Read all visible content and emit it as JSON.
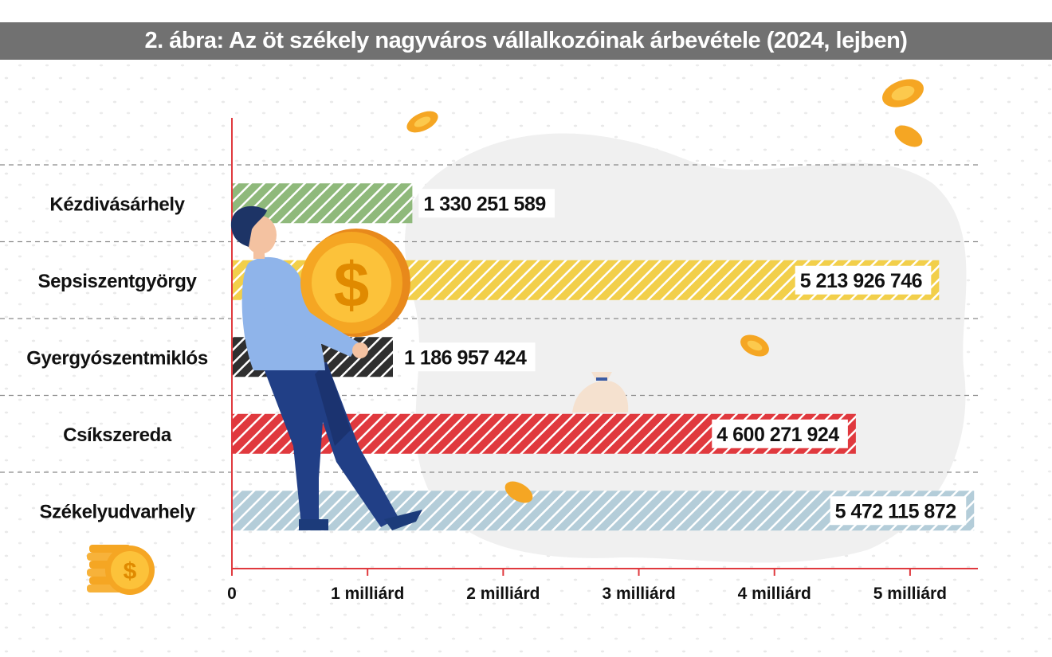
{
  "header": {
    "title": "2. ábra: Az öt székely nagyváros vállalkozóinak árbevétele (2024, lejben)"
  },
  "chart_data": {
    "type": "bar",
    "orientation": "horizontal",
    "title": "2. ábra: Az öt székely nagyváros vállalkozóinak árbevétele (2024, lejben)",
    "categories": [
      "Kézdivásárhely",
      "Sepsiszentgyörgy",
      "Gyergyószentmiklós",
      "Csíkszereda",
      "Székelyudvarhely"
    ],
    "values": [
      1330251589,
      5213926746,
      1186957424,
      4600271924,
      5472115872
    ],
    "value_labels": [
      "1 330 251 589",
      "5 213 926 746",
      "1 186 957 424",
      "4 600 271 924",
      "5 472 115 872"
    ],
    "bar_colors": [
      "#a9c89a",
      "#f4d35e",
      "#3a3a3a",
      "#e0393e",
      "#bcd3df"
    ],
    "xlim": [
      0,
      5500000000
    ],
    "ticks": [
      0,
      1000000000,
      2000000000,
      3000000000,
      4000000000,
      5000000000
    ],
    "tick_labels": [
      "0",
      "1 milliárd",
      "2 milliárd",
      "3 milliárd",
      "4 milliárd",
      "5 milliárd"
    ],
    "xlabel": "",
    "ylabel": "",
    "grid": "dashed horizontal separators",
    "legend": "none"
  },
  "colors": {
    "title_bar": "#717171",
    "axis": "#e0393e",
    "separator": "#8a8a8a",
    "coin": "#f5a623"
  },
  "decorations": {
    "illustration": "man-carrying-dollar-coin",
    "icons": [
      "coin-stack-icon",
      "money-bag-icon",
      "coin-icon"
    ]
  }
}
